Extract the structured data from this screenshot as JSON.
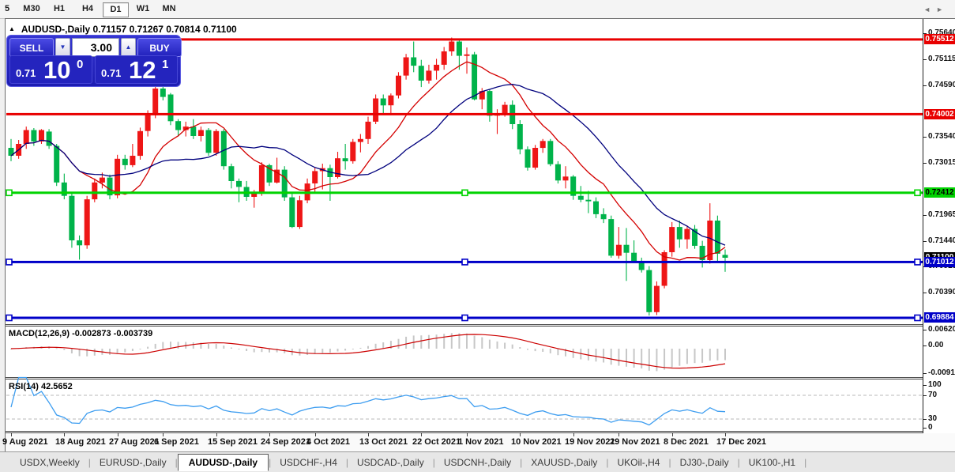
{
  "toolbar": {
    "timeframes": [
      "5",
      "M30",
      "H1",
      "H4",
      "D1",
      "W1",
      "MN"
    ],
    "active_timeframe": "D1"
  },
  "chart": {
    "collapse_icon": "▲",
    "symbol_title": "AUDUSD-,Daily",
    "ohlc_text": "0.71157 0.71267 0.70814 0.71100"
  },
  "trade_panel": {
    "sell_label": "SELL",
    "buy_label": "BUY",
    "volume": "3.00",
    "spin_down_icon": "▼",
    "spin_up_icon": "▲",
    "sell_small": "0.71",
    "sell_big": "10",
    "sell_sup": "0",
    "buy_small": "0.71",
    "buy_big": "12",
    "buy_sup": "1"
  },
  "chart_data": {
    "type": "candlestick",
    "symbol": "AUDUSD-,Daily",
    "timeframe": "Daily",
    "up_color": "#ee1616",
    "down_color": "#00b34a",
    "ma_fast": {
      "period": 10,
      "color": "#d40000"
    },
    "ma_slow": {
      "period": 20,
      "color": "#00007d"
    },
    "price_range": {
      "top": 0.7583,
      "bottom": 0.6974
    },
    "candles": [
      [
        0.7332,
        0.735,
        0.7305,
        0.7316
      ],
      [
        0.7316,
        0.7348,
        0.731,
        0.734
      ],
      [
        0.734,
        0.7375,
        0.733,
        0.7368
      ],
      [
        0.7368,
        0.7372,
        0.7336,
        0.7345
      ],
      [
        0.7345,
        0.737,
        0.734,
        0.7368
      ],
      [
        0.7365,
        0.737,
        0.733,
        0.7336
      ],
      [
        0.7336,
        0.734,
        0.7255,
        0.7262
      ],
      [
        0.7262,
        0.728,
        0.7228,
        0.7235
      ],
      [
        0.7235,
        0.724,
        0.713,
        0.7145
      ],
      [
        0.7145,
        0.7155,
        0.7106,
        0.7135
      ],
      [
        0.7135,
        0.7235,
        0.7128,
        0.7228
      ],
      [
        0.7228,
        0.727,
        0.7222,
        0.7262
      ],
      [
        0.7262,
        0.7282,
        0.725,
        0.7272
      ],
      [
        0.7272,
        0.7278,
        0.7228,
        0.7236
      ],
      [
        0.7236,
        0.7318,
        0.723,
        0.731
      ],
      [
        0.731,
        0.7318,
        0.7288,
        0.7297
      ],
      [
        0.7297,
        0.734,
        0.7293,
        0.7316
      ],
      [
        0.7316,
        0.7373,
        0.7308,
        0.7366
      ],
      [
        0.7366,
        0.7408,
        0.7355,
        0.7398
      ],
      [
        0.7398,
        0.7477,
        0.7392,
        0.7452
      ],
      [
        0.7452,
        0.7462,
        0.7428,
        0.7435
      ],
      [
        0.744,
        0.7443,
        0.7378,
        0.7386
      ],
      [
        0.7386,
        0.739,
        0.7355,
        0.7368
      ],
      [
        0.7368,
        0.7385,
        0.7355,
        0.7375
      ],
      [
        0.7375,
        0.739,
        0.735,
        0.7356
      ],
      [
        0.7356,
        0.7375,
        0.7345,
        0.7368
      ],
      [
        0.7368,
        0.7372,
        0.7316,
        0.7322
      ],
      [
        0.7322,
        0.737,
        0.7316,
        0.7366
      ],
      [
        0.7366,
        0.737,
        0.7288,
        0.7295
      ],
      [
        0.7295,
        0.73,
        0.725,
        0.7265
      ],
      [
        0.7265,
        0.727,
        0.7222,
        0.7253
      ],
      [
        0.7253,
        0.7265,
        0.7225,
        0.7233
      ],
      [
        0.7233,
        0.7247,
        0.7211,
        0.724
      ],
      [
        0.724,
        0.7303,
        0.7235,
        0.7297
      ],
      [
        0.7297,
        0.73,
        0.7255,
        0.7262
      ],
      [
        0.7262,
        0.7312,
        0.726,
        0.7288
      ],
      [
        0.7288,
        0.7295,
        0.7225,
        0.7232
      ],
      [
        0.7232,
        0.724,
        0.717,
        0.7172
      ],
      [
        0.7172,
        0.7235,
        0.7168,
        0.7226
      ],
      [
        0.7226,
        0.727,
        0.722,
        0.726
      ],
      [
        0.726,
        0.7292,
        0.724,
        0.7285
      ],
      [
        0.7285,
        0.73,
        0.7248,
        0.7291
      ],
      [
        0.7291,
        0.7298,
        0.7225,
        0.7273
      ],
      [
        0.7273,
        0.7324,
        0.727,
        0.7311
      ],
      [
        0.7311,
        0.734,
        0.7288,
        0.7305
      ],
      [
        0.7305,
        0.735,
        0.73,
        0.7344
      ],
      [
        0.7344,
        0.736,
        0.7323,
        0.735
      ],
      [
        0.735,
        0.7395,
        0.734,
        0.7385
      ],
      [
        0.7385,
        0.744,
        0.738,
        0.7432
      ],
      [
        0.7432,
        0.744,
        0.74,
        0.7418
      ],
      [
        0.7418,
        0.7442,
        0.7398,
        0.7438
      ],
      [
        0.7438,
        0.7485,
        0.7432,
        0.7478
      ],
      [
        0.7478,
        0.7522,
        0.747,
        0.7515
      ],
      [
        0.7515,
        0.7547,
        0.7485,
        0.7498
      ],
      [
        0.7498,
        0.751,
        0.7455,
        0.7468
      ],
      [
        0.7468,
        0.75,
        0.7462,
        0.7488
      ],
      [
        0.7488,
        0.7512,
        0.747,
        0.75
      ],
      [
        0.75,
        0.7536,
        0.749,
        0.7527
      ],
      [
        0.7527,
        0.7555,
        0.7518,
        0.7547
      ],
      [
        0.7547,
        0.7552,
        0.749,
        0.7518
      ],
      [
        0.7518,
        0.7535,
        0.7482,
        0.7521
      ],
      [
        0.7521,
        0.7526,
        0.7428,
        0.743
      ],
      [
        0.743,
        0.7453,
        0.741,
        0.7447
      ],
      [
        0.7447,
        0.745,
        0.7385,
        0.7397
      ],
      [
        0.7397,
        0.741,
        0.736,
        0.7402
      ],
      [
        0.7402,
        0.7425,
        0.7395,
        0.7419
      ],
      [
        0.7419,
        0.7428,
        0.737,
        0.738
      ],
      [
        0.738,
        0.7388,
        0.7319,
        0.7329
      ],
      [
        0.7329,
        0.7335,
        0.7286,
        0.7292
      ],
      [
        0.7292,
        0.7338,
        0.7288,
        0.7332
      ],
      [
        0.7332,
        0.735,
        0.7322,
        0.7346
      ],
      [
        0.7346,
        0.735,
        0.7295,
        0.7299
      ],
      [
        0.7299,
        0.7305,
        0.726,
        0.7266
      ],
      [
        0.7266,
        0.7295,
        0.725,
        0.7274
      ],
      [
        0.7274,
        0.7277,
        0.7227,
        0.7235
      ],
      [
        0.7235,
        0.7255,
        0.7222,
        0.7227
      ],
      [
        0.7227,
        0.7245,
        0.72,
        0.7224
      ],
      [
        0.7224,
        0.7232,
        0.719,
        0.7198
      ],
      [
        0.7198,
        0.721,
        0.718,
        0.7188
      ],
      [
        0.7188,
        0.7195,
        0.711,
        0.7114
      ],
      [
        0.7114,
        0.7172,
        0.7108,
        0.7136
      ],
      [
        0.7136,
        0.717,
        0.7063,
        0.712
      ],
      [
        0.712,
        0.7145,
        0.71,
        0.7102
      ],
      [
        0.7102,
        0.711,
        0.708,
        0.7085
      ],
      [
        0.7085,
        0.7093,
        0.6993,
        0.7
      ],
      [
        0.7,
        0.7062,
        0.6994,
        0.7053
      ],
      [
        0.7053,
        0.7125,
        0.7048,
        0.7121
      ],
      [
        0.7121,
        0.7182,
        0.7112,
        0.7172
      ],
      [
        0.7172,
        0.7185,
        0.713,
        0.7147
      ],
      [
        0.7147,
        0.7175,
        0.7128,
        0.7168
      ],
      [
        0.7168,
        0.7176,
        0.7128,
        0.7134
      ],
      [
        0.7134,
        0.7144,
        0.709,
        0.7105
      ],
      [
        0.7105,
        0.722,
        0.7098,
        0.7185
      ],
      [
        0.7185,
        0.7195,
        0.71,
        0.7118
      ],
      [
        0.71157,
        0.71267,
        0.70814,
        0.711
      ]
    ],
    "hlines": [
      {
        "price": 0.75512,
        "color": "#e80000",
        "selected": false
      },
      {
        "price": 0.74002,
        "color": "#e80000",
        "selected": false
      },
      {
        "price": 0.72412,
        "color": "#00d300",
        "selected": true
      },
      {
        "price": 0.71012,
        "color": "#0000c8",
        "selected": true
      },
      {
        "price": 0.69884,
        "color": "#0000c8",
        "selected": true
      }
    ],
    "current_bid": "0.71100"
  },
  "price_axis": {
    "plain_ticks": [
      "0.75640",
      "0.75115",
      "0.74590",
      "0.73540",
      "0.73015",
      "0.71965",
      "0.71440",
      "0.70915",
      "0.70390"
    ],
    "tags": [
      {
        "text": "0.75512",
        "bg": "#e80000",
        "fg": "#ffffff",
        "price": 0.75512
      },
      {
        "text": "0.74002",
        "bg": "#e80000",
        "fg": "#ffffff",
        "price": 0.74002
      },
      {
        "text": "0.72412",
        "bg": "#00d300",
        "fg": "#000000",
        "price": 0.72412
      },
      {
        "text": "0.71100",
        "bg": "#000000",
        "fg": "#ffffff",
        "price": 0.711
      },
      {
        "text": "0.71012",
        "bg": "#0000c8",
        "fg": "#ffffff",
        "price": 0.71012
      },
      {
        "text": "0.69884",
        "bg": "#0000c8",
        "fg": "#ffffff",
        "price": 0.69884
      }
    ]
  },
  "macd": {
    "label": "MACD(12,26,9) -0.002873 -0.003739",
    "params": [
      12,
      26,
      9
    ],
    "main_value": "-0.002873",
    "signal_value": "-0.003739",
    "axis": [
      "0.006201",
      "0.00",
      "-0.009197"
    ],
    "hist_color": "#c7c7c7",
    "signal_color": "#cc0000"
  },
  "rsi": {
    "label": "RSI(14) 42.5652",
    "period": 14,
    "value": "42.5652",
    "axis": [
      "100",
      "70",
      "30",
      "0"
    ],
    "levels": [
      70,
      30
    ],
    "line_color": "#3d9df0"
  },
  "timeline": {
    "dates": [
      {
        "label": "9 Aug 2021",
        "bar": 0
      },
      {
        "label": "18 Aug 2021",
        "bar": 7
      },
      {
        "label": "27 Aug 2021",
        "bar": 14
      },
      {
        "label": "6 Sep 2021",
        "bar": 20
      },
      {
        "label": "15 Sep 2021",
        "bar": 27
      },
      {
        "label": "24 Sep 2021",
        "bar": 34
      },
      {
        "label": "4 Oct 2021",
        "bar": 40
      },
      {
        "label": "13 Oct 2021",
        "bar": 47
      },
      {
        "label": "22 Oct 2021",
        "bar": 54
      },
      {
        "label": "1 Nov 2021",
        "bar": 60
      },
      {
        "label": "10 Nov 2021",
        "bar": 67
      },
      {
        "label": "19 Nov 2021",
        "bar": 74
      },
      {
        "label": "29 Nov 2021",
        "bar": 80
      },
      {
        "label": "8 Dec 2021",
        "bar": 87
      },
      {
        "label": "17 Dec 2021",
        "bar": 94
      }
    ]
  },
  "tabbar": {
    "tabs": [
      "USDX,Weekly",
      "EURUSD-,Daily",
      "AUDUSD-,Daily",
      "USDCHF-,H4",
      "USDCAD-,Daily",
      "USDCNH-,Daily",
      "XAUUSD-,Daily",
      "UKOil-,H4",
      "DJ30-,Daily",
      "UK100-,H1"
    ],
    "active_tab": "AUDUSD-,Daily",
    "scroll_left_icon": "◄",
    "scroll_right_icon": "►"
  }
}
